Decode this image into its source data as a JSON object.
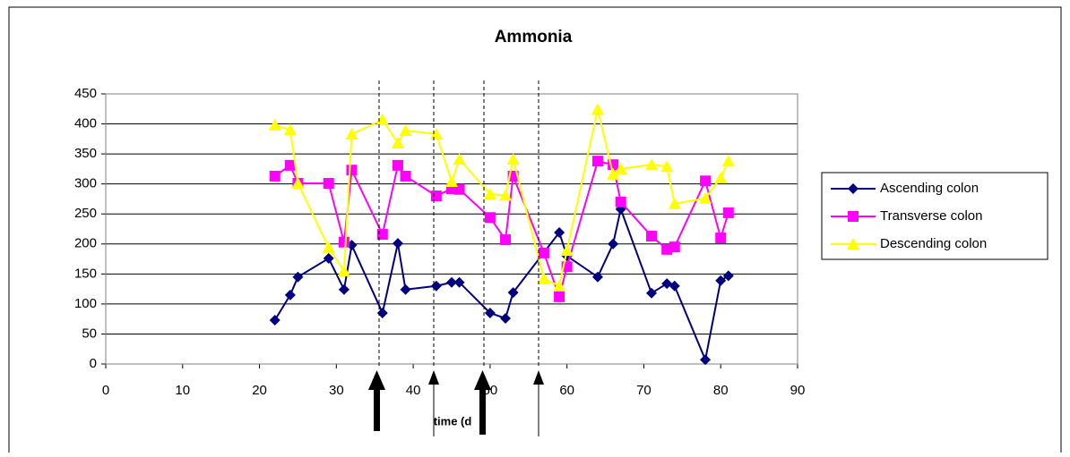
{
  "chart_data": {
    "type": "line",
    "title": "Ammonia",
    "x_label": "time (d",
    "xlim": [
      0,
      90
    ],
    "xticks": [
      0,
      10,
      20,
      30,
      40,
      50,
      60,
      70,
      80,
      90
    ],
    "ylim": [
      0,
      450
    ],
    "yticks": [
      0,
      50,
      100,
      150,
      200,
      250,
      300,
      350,
      400,
      450
    ],
    "grid": true,
    "legend": "right",
    "series": [
      {
        "name": "Ascending colon",
        "color": "#000080",
        "marker": "diamond",
        "x": [
          22,
          24,
          25,
          29,
          31,
          32,
          36,
          38,
          39,
          43,
          45,
          46,
          50,
          52,
          53,
          59,
          60,
          64,
          66,
          67,
          71,
          73,
          74,
          78,
          80,
          81
        ],
        "values": [
          73,
          115,
          145,
          176,
          124,
          198,
          85,
          201,
          124,
          130,
          136,
          136,
          85,
          76,
          119,
          219,
          180,
          145,
          200,
          258,
          118,
          134,
          130,
          7,
          139,
          147
        ]
      },
      {
        "name": "Transverse colon",
        "color": "#ff00ff",
        "marker": "square",
        "x": [
          22,
          24,
          25,
          29,
          31,
          32,
          36,
          38,
          39,
          43,
          45,
          46,
          50,
          52,
          53,
          57,
          59,
          60,
          64,
          66,
          67,
          71,
          73,
          74,
          78,
          80,
          81
        ],
        "values": [
          313,
          331,
          301,
          301,
          203,
          323,
          216,
          331,
          313,
          280,
          292,
          291,
          244,
          207,
          313,
          185,
          112,
          162,
          338,
          332,
          270,
          213,
          191,
          195,
          305,
          210,
          252
        ]
      },
      {
        "name": "Descending colon",
        "color": "#ffff00",
        "marker": "triangle",
        "x": [
          22,
          24,
          25,
          29,
          31,
          32,
          36,
          38,
          39,
          43,
          45,
          46,
          50,
          52,
          53,
          57,
          59,
          60,
          64,
          66,
          67,
          71,
          73,
          74,
          78,
          80,
          81
        ],
        "values": [
          398,
          390,
          301,
          194,
          155,
          383,
          407,
          368,
          389,
          383,
          304,
          341,
          283,
          281,
          341,
          142,
          130,
          189,
          424,
          316,
          325,
          332,
          329,
          267,
          276,
          310,
          338
        ]
      }
    ]
  }
}
